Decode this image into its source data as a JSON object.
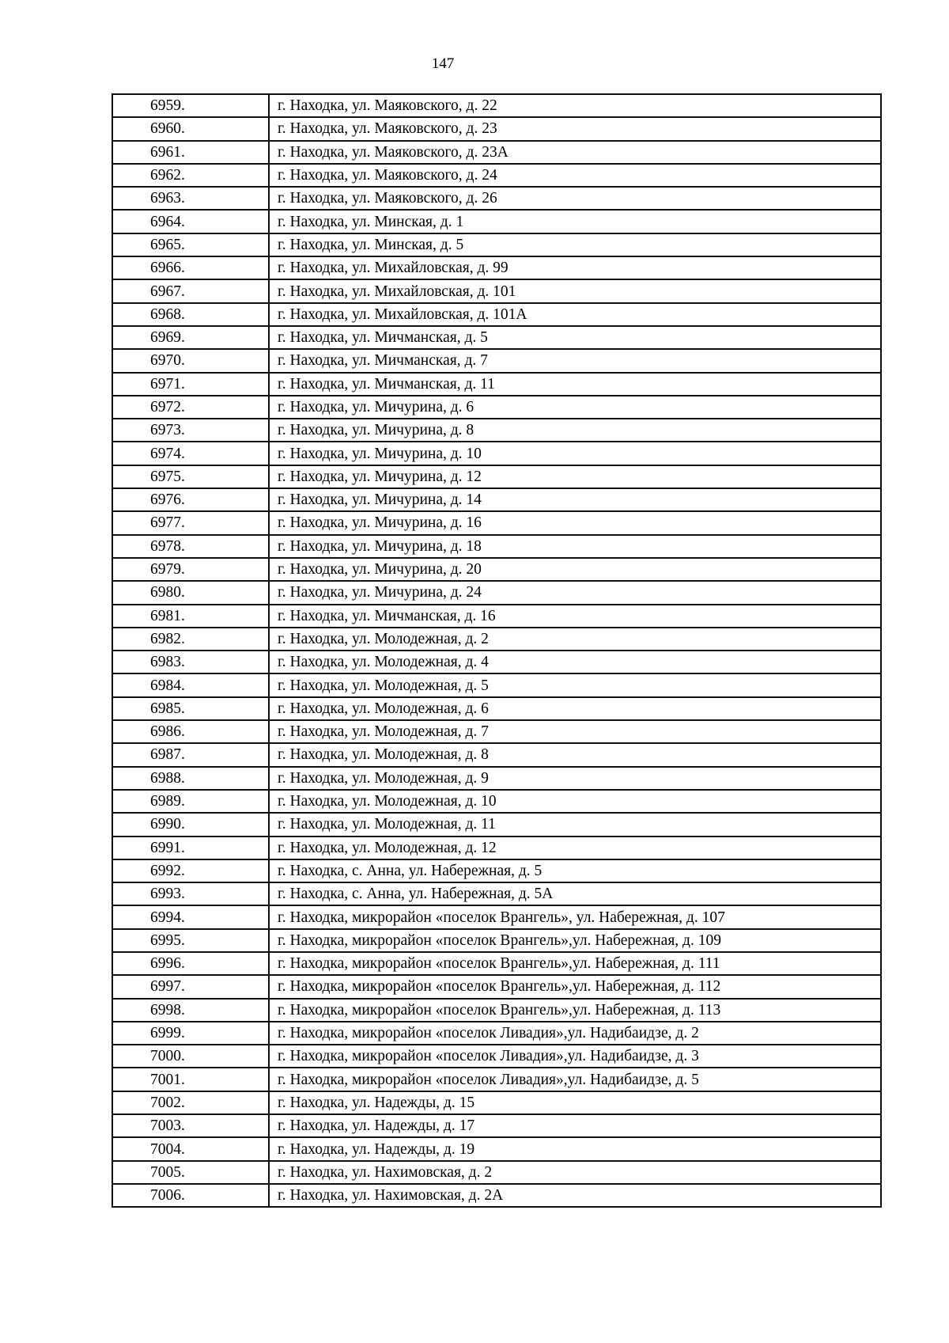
{
  "page_number": "147",
  "rows": [
    {
      "num": "6959.",
      "address": "г. Находка, ул. Маяковского, д. 22"
    },
    {
      "num": "6960.",
      "address": "г. Находка, ул. Маяковского, д. 23"
    },
    {
      "num": "6961.",
      "address": "г. Находка, ул. Маяковского, д. 23А"
    },
    {
      "num": "6962.",
      "address": "г. Находка, ул. Маяковского, д. 24"
    },
    {
      "num": "6963.",
      "address": "г. Находка, ул. Маяковского, д. 26"
    },
    {
      "num": "6964.",
      "address": "г. Находка, ул. Минская, д. 1"
    },
    {
      "num": "6965.",
      "address": "г. Находка, ул. Минская, д. 5"
    },
    {
      "num": "6966.",
      "address": "г. Находка, ул. Михайловская, д. 99"
    },
    {
      "num": "6967.",
      "address": "г. Находка, ул. Михайловская, д. 101"
    },
    {
      "num": "6968.",
      "address": "г. Находка, ул. Михайловская, д. 101А"
    },
    {
      "num": "6969.",
      "address": "г. Находка, ул. Мичманская, д. 5"
    },
    {
      "num": "6970.",
      "address": "г. Находка, ул. Мичманская, д. 7"
    },
    {
      "num": "6971.",
      "address": "г. Находка, ул. Мичманская, д. 11"
    },
    {
      "num": "6972.",
      "address": "г. Находка, ул. Мичурина, д. 6"
    },
    {
      "num": "6973.",
      "address": "г. Находка, ул. Мичурина, д. 8"
    },
    {
      "num": "6974.",
      "address": "г. Находка, ул. Мичурина, д. 10"
    },
    {
      "num": "6975.",
      "address": "г. Находка, ул. Мичурина, д. 12"
    },
    {
      "num": "6976.",
      "address": "г. Находка, ул. Мичурина, д. 14"
    },
    {
      "num": "6977.",
      "address": "г. Находка, ул. Мичурина, д. 16"
    },
    {
      "num": "6978.",
      "address": "г. Находка, ул. Мичурина, д. 18"
    },
    {
      "num": "6979.",
      "address": "г. Находка, ул. Мичурина, д. 20"
    },
    {
      "num": "6980.",
      "address": "г. Находка, ул. Мичурина, д. 24"
    },
    {
      "num": "6981.",
      "address": "г. Находка, ул. Мичманская, д. 16"
    },
    {
      "num": "6982.",
      "address": "г. Находка, ул. Молодежная, д. 2"
    },
    {
      "num": "6983.",
      "address": "г. Находка, ул. Молодежная, д. 4"
    },
    {
      "num": "6984.",
      "address": "г. Находка, ул. Молодежная, д. 5"
    },
    {
      "num": "6985.",
      "address": "г. Находка, ул. Молодежная, д. 6"
    },
    {
      "num": "6986.",
      "address": "г. Находка, ул. Молодежная, д. 7"
    },
    {
      "num": "6987.",
      "address": "г. Находка, ул. Молодежная, д. 8"
    },
    {
      "num": "6988.",
      "address": "г. Находка, ул. Молодежная, д. 9"
    },
    {
      "num": "6989.",
      "address": "г. Находка, ул. Молодежная, д. 10"
    },
    {
      "num": "6990.",
      "address": "г. Находка, ул. Молодежная, д. 11"
    },
    {
      "num": "6991.",
      "address": "г. Находка, ул. Молодежная, д. 12"
    },
    {
      "num": "6992.",
      "address": "г. Находка, с. Анна, ул. Набережная, д. 5"
    },
    {
      "num": "6993.",
      "address": "г. Находка, с. Анна, ул. Набережная, д. 5А"
    },
    {
      "num": "6994.",
      "address": "г. Находка, микрорайон «поселок Врангель», ул. Набережная, д. 107"
    },
    {
      "num": "6995.",
      "address": "г. Находка, микрорайон «поселок Врангель»,ул. Набережная, д. 109"
    },
    {
      "num": "6996.",
      "address": "г. Находка, микрорайон «поселок Врангель»,ул. Набережная, д. 111"
    },
    {
      "num": "6997.",
      "address": "г. Находка, микрорайон «поселок Врангель»,ул. Набережная, д. 112"
    },
    {
      "num": "6998.",
      "address": "г. Находка, микрорайон «поселок Врангель»,ул. Набережная, д. 113"
    },
    {
      "num": "6999.",
      "address": "г. Находка, микрорайон «поселок Ливадия»,ул. Надибаидзе, д. 2"
    },
    {
      "num": "7000.",
      "address": "г. Находка, микрорайон «поселок Ливадия»,ул. Надибаидзе, д. 3"
    },
    {
      "num": "7001.",
      "address": "г. Находка, микрорайон «поселок Ливадия»,ул. Надибаидзе, д. 5"
    },
    {
      "num": "7002.",
      "address": "г. Находка, ул. Надежды, д. 15"
    },
    {
      "num": "7003.",
      "address": "г. Находка, ул. Надежды, д. 17"
    },
    {
      "num": "7004.",
      "address": "г. Находка, ул. Надежды, д. 19"
    },
    {
      "num": "7005.",
      "address": "г. Находка, ул. Нахимовская, д. 2"
    },
    {
      "num": "7006.",
      "address": "г. Находка, ул. Нахимовская, д. 2А"
    }
  ]
}
